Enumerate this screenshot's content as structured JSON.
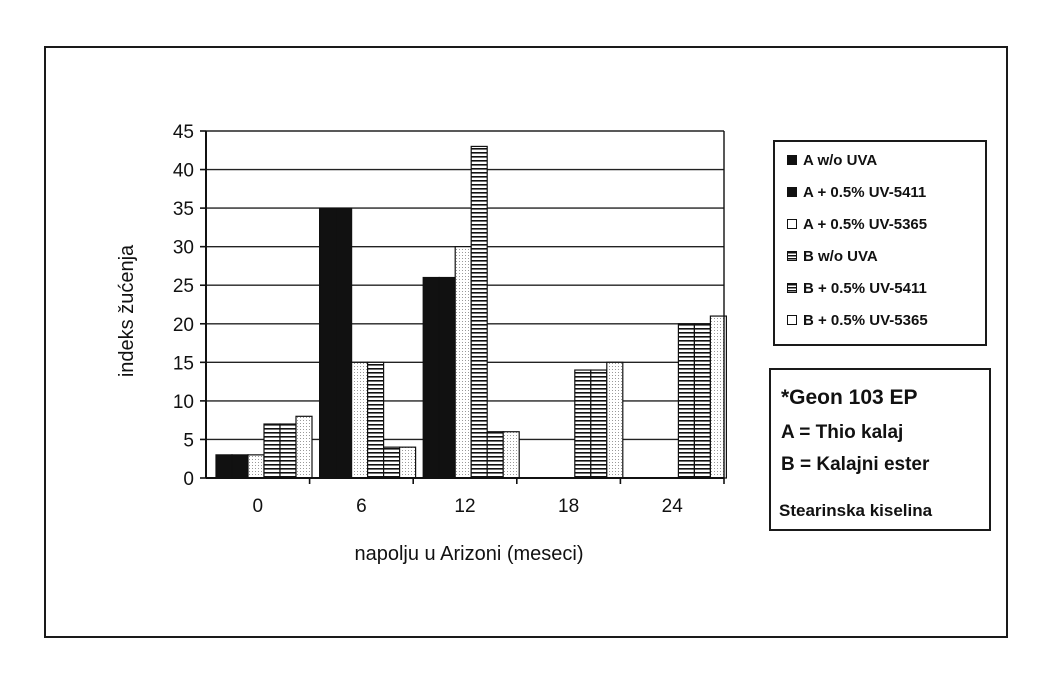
{
  "chart_data": {
    "type": "bar",
    "xlabel": "napolju u Arizoni (meseci)",
    "ylabel": "indeks žućenja",
    "categories": [
      "0",
      "6",
      "12",
      "18",
      "24"
    ],
    "ylim": [
      0,
      45
    ],
    "yticks": [
      "0",
      "5",
      "10",
      "15",
      "20",
      "25",
      "30",
      "35",
      "40",
      "45"
    ],
    "grid": true,
    "legend_position": "right",
    "series": [
      {
        "name": "A w/o UVA",
        "values": [
          3,
          35,
          26,
          0,
          0
        ],
        "fill": "#111111",
        "pattern": "solid"
      },
      {
        "name": "A + 0.5% UV-5411",
        "values": [
          3,
          35,
          26,
          0,
          0
        ],
        "fill": "#111111",
        "pattern": "solid"
      },
      {
        "name": "A + 0.5% UV-5365",
        "values": [
          3,
          15,
          30,
          0,
          0
        ],
        "fill": "#ffffff",
        "pattern": "dots"
      },
      {
        "name": "B w/o UVA",
        "values": [
          7,
          15,
          43,
          14,
          20
        ],
        "fill": "#ffffff",
        "pattern": "hlines"
      },
      {
        "name": "B + 0.5% UV-5411",
        "values": [
          7,
          4,
          6,
          14,
          20
        ],
        "fill": "#ffffff",
        "pattern": "hlines"
      },
      {
        "name": "B + 0.5% UV-5365",
        "values": [
          8,
          4,
          6,
          15,
          21
        ],
        "fill": "#ffffff",
        "pattern": "dots"
      }
    ]
  },
  "note": {
    "line1": "*Geon 103 EP",
    "line2": "A = Thio kalaj",
    "line3": "B = Kalajni ester",
    "line4": "Stearinska kiselina"
  }
}
